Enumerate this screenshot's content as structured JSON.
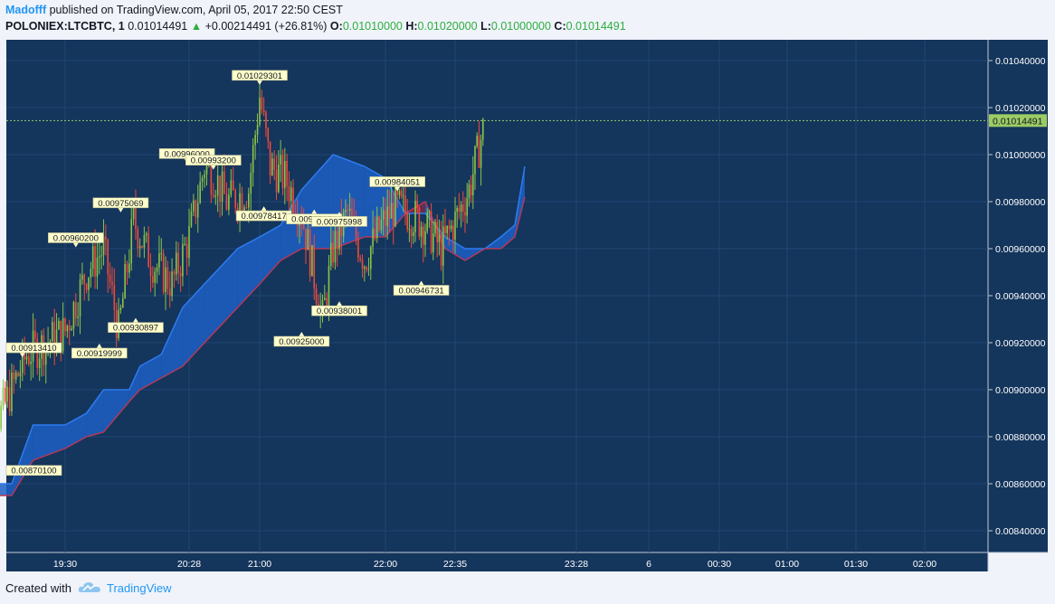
{
  "header": {
    "author": "Madofff",
    "published": "published on TradingView.com, April 05, 2017 22:50 CEST",
    "symbol": "POLONIEX:LTCBTC, 1",
    "last": "0.01014491",
    "change_arrow": "▲",
    "change": "+0.00214491 (+26.81%)",
    "o_label": "O:",
    "o_value": "0.01010000",
    "h_label": "H:",
    "h_value": "0.01020000",
    "l_label": "L:",
    "l_value": "0.01000000",
    "c_label": "C:",
    "c_value": "0.01014491"
  },
  "footer": {
    "created_with": "Created with",
    "brand": "TradingView"
  },
  "colors": {
    "background": "#14355c",
    "grid": "#1e4773",
    "up": "#8bc34a",
    "down": "#f04a3a",
    "cloud_bull": "#1c5fc4",
    "cloud_bear": "#7a2a45",
    "price_line": "#9ccc65"
  },
  "chart_data": {
    "type": "candlestick",
    "ylim": [
      0.0083,
      0.0105
    ],
    "y_ticks": [
      "0.00840000",
      "0.00860000",
      "0.00880000",
      "0.00900000",
      "0.00920000",
      "0.00940000",
      "0.00960000",
      "0.00980000",
      "0.01000000",
      "0.01020000",
      "0.01040000"
    ],
    "x_ticks": [
      "19:30",
      "20:28",
      "21:00",
      "22:00",
      "22:35",
      "23:28",
      "6",
      "00:30",
      "01:00",
      "01:30",
      "02:00"
    ],
    "last_price": "0.01014491",
    "close_path": [
      [
        "18:50",
        0.0088
      ],
      [
        "19:00",
        0.0089
      ],
      [
        "19:12",
        0.00915
      ],
      [
        "19:30",
        0.00925
      ],
      [
        "19:40",
        0.0095
      ],
      [
        "19:48",
        0.0096
      ],
      [
        "19:55",
        0.00925
      ],
      [
        "20:02",
        0.00972
      ],
      [
        "20:10",
        0.00955
      ],
      [
        "20:20",
        0.00945
      ],
      [
        "20:28",
        0.00965
      ],
      [
        "20:35",
        0.00995
      ],
      [
        "20:40",
        0.0099
      ],
      [
        "20:45",
        0.0098
      ],
      [
        "20:55",
        0.00985
      ],
      [
        "21:00",
        0.01025
      ],
      [
        "21:05",
        0.00995
      ],
      [
        "21:12",
        0.0099
      ],
      [
        "21:20",
        0.00975
      ],
      [
        "21:30",
        0.0093
      ],
      [
        "21:35",
        0.0096
      ],
      [
        "21:42",
        0.00975
      ],
      [
        "21:50",
        0.00955
      ],
      [
        "21:58",
        0.0097
      ],
      [
        "22:05",
        0.00978
      ],
      [
        "22:12",
        0.00975
      ],
      [
        "22:20",
        0.0097
      ],
      [
        "22:28",
        0.0096
      ],
      [
        "22:35",
        0.00972
      ],
      [
        "22:42",
        0.00985
      ],
      [
        "22:50",
        0.01014
      ]
    ],
    "annotations": [
      {
        "text": "0.00870100",
        "x": "18:53",
        "y": 0.008701,
        "pos": "below"
      },
      {
        "text": "0.00913410",
        "x": "19:10",
        "y": 0.0091341,
        "pos": "above"
      },
      {
        "text": "0.00960200",
        "x": "19:35",
        "y": 0.009602,
        "pos": "above"
      },
      {
        "text": "0.00919999",
        "x": "19:46",
        "y": 0.00919999,
        "pos": "below"
      },
      {
        "text": "0.00975069",
        "x": "19:56",
        "y": 0.00975069,
        "pos": "above"
      },
      {
        "text": "0.00930897",
        "x": "20:03",
        "y": 0.00930897,
        "pos": "below"
      },
      {
        "text": "0.00996000",
        "x": "20:27",
        "y": 0.00996,
        "pos": "above"
      },
      {
        "text": "0.00993200",
        "x": "20:39",
        "y": 0.009932,
        "pos": "above"
      },
      {
        "text": "0.01029301",
        "x": "21:00",
        "y": 0.01029301,
        "pos": "above"
      },
      {
        "text": "0.00978417",
        "x": "21:02",
        "y": 0.00978417,
        "pos": "below"
      },
      {
        "text": "0.00977051",
        "x": "21:26",
        "y": 0.00977051,
        "pos": "below"
      },
      {
        "text": "0.00975998",
        "x": "21:38",
        "y": 0.00975998,
        "pos": "below"
      },
      {
        "text": "0.00984051",
        "x": "22:06",
        "y": 0.00984051,
        "pos": "above"
      },
      {
        "text": "0.00925000",
        "x": "21:20",
        "y": 0.00925,
        "pos": "below"
      },
      {
        "text": "0.00938001",
        "x": "21:38",
        "y": 0.00938001,
        "pos": "below"
      },
      {
        "text": "0.00946731",
        "x": "22:18",
        "y": 0.00946731,
        "pos": "below"
      }
    ],
    "cloud": {
      "span_a": [
        [
          "18:50",
          0.0086
        ],
        [
          "19:05",
          0.0086
        ],
        [
          "19:15",
          0.00885
        ],
        [
          "19:30",
          0.00885
        ],
        [
          "19:40",
          0.0089
        ],
        [
          "19:48",
          0.009
        ],
        [
          "20:00",
          0.009
        ],
        [
          "20:05",
          0.0091
        ],
        [
          "20:15",
          0.00915
        ],
        [
          "20:25",
          0.00935
        ],
        [
          "20:35",
          0.00945
        ],
        [
          "20:50",
          0.0096
        ],
        [
          "21:00",
          0.00965
        ],
        [
          "21:10",
          0.0097
        ],
        [
          "21:20",
          0.00985
        ],
        [
          "21:35",
          0.01
        ],
        [
          "21:50",
          0.00995
        ],
        [
          "22:00",
          0.0099
        ],
        [
          "22:10",
          0.00975
        ],
        [
          "22:20",
          0.00975
        ],
        [
          "22:30",
          0.00965
        ],
        [
          "22:40",
          0.0096
        ],
        [
          "22:50",
          0.0096
        ],
        [
          "22:58",
          0.00965
        ],
        [
          "23:05",
          0.0097
        ],
        [
          "23:10",
          0.00995
        ]
      ],
      "span_b": [
        [
          "18:50",
          0.00855
        ],
        [
          "19:05",
          0.00855
        ],
        [
          "19:15",
          0.0087
        ],
        [
          "19:30",
          0.00875
        ],
        [
          "19:40",
          0.0088
        ],
        [
          "19:48",
          0.00882
        ],
        [
          "20:00",
          0.00895
        ],
        [
          "20:05",
          0.009
        ],
        [
          "20:15",
          0.00905
        ],
        [
          "20:25",
          0.0091
        ],
        [
          "20:35",
          0.0092
        ],
        [
          "20:50",
          0.00935
        ],
        [
          "21:00",
          0.00945
        ],
        [
          "21:10",
          0.00955
        ],
        [
          "21:20",
          0.0096
        ],
        [
          "21:35",
          0.0096
        ],
        [
          "21:50",
          0.00965
        ],
        [
          "22:00",
          0.00965
        ],
        [
          "22:10",
          0.00975
        ],
        [
          "22:20",
          0.0098
        ],
        [
          "22:30",
          0.0096
        ],
        [
          "22:40",
          0.00955
        ],
        [
          "22:50",
          0.0096
        ],
        [
          "22:58",
          0.0096
        ],
        [
          "23:05",
          0.00965
        ],
        [
          "23:10",
          0.00982
        ]
      ]
    }
  }
}
